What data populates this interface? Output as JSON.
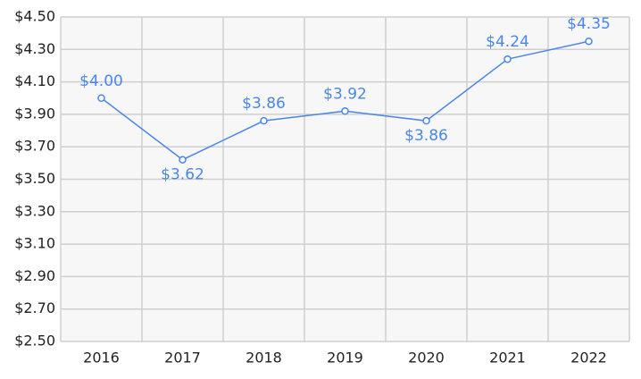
{
  "chart_data": {
    "type": "line",
    "categories": [
      "2016",
      "2017",
      "2018",
      "2019",
      "2020",
      "2021",
      "2022"
    ],
    "series": [
      {
        "color": "#4a86e8",
        "values": [
          4.0,
          3.62,
          3.86,
          3.92,
          3.86,
          4.24,
          4.35
        ],
        "value_labels": [
          "$4.00",
          "$3.62",
          "$3.86",
          "$3.92",
          "$3.86",
          "$4.24",
          "$4.35"
        ]
      }
    ],
    "ylim": [
      2.5,
      4.5
    ],
    "yticks": [
      {
        "value": 2.5,
        "label": "$2.50"
      },
      {
        "value": 2.7,
        "label": "$2.70"
      },
      {
        "value": 2.9,
        "label": "$2.90"
      },
      {
        "value": 3.1,
        "label": "$3.10"
      },
      {
        "value": 3.3,
        "label": "$3.30"
      },
      {
        "value": 3.5,
        "label": "$3.50"
      },
      {
        "value": 3.7,
        "label": "$3.70"
      },
      {
        "value": 3.9,
        "label": "$3.90"
      },
      {
        "value": 4.1,
        "label": "$4.10"
      },
      {
        "value": 4.3,
        "label": "$4.30"
      },
      {
        "value": 4.5,
        "label": "$4.50"
      }
    ],
    "grid": true
  }
}
